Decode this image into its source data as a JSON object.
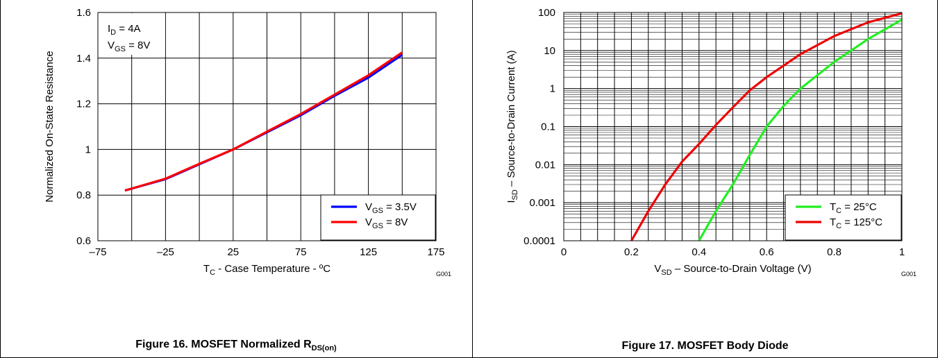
{
  "figures": {
    "left": {
      "caption_main": "Figure 16. MOSFET Normalized R",
      "caption_sub": "DS(on)",
      "code": "G001"
    },
    "right": {
      "caption_main": "Figure 17. MOSFET Body Diode",
      "code": "G001"
    }
  },
  "chart_data": [
    {
      "type": "line",
      "xlabel": "T - Case Temperature - ºC",
      "xlabel_parts": [
        "T",
        "C",
        " - Case Temperature - ºC"
      ],
      "ylabel": "Normalized On-State Resistance",
      "xlim": [
        -75,
        175
      ],
      "ylim": [
        0.6,
        1.6
      ],
      "xticks": [
        "–75",
        "–25",
        "25",
        "75",
        "125",
        "175"
      ],
      "xtick_values": [
        -75,
        -25,
        25,
        75,
        125,
        175
      ],
      "yticks": [
        "0.6",
        "0.8",
        "1",
        "1.2",
        "1.4",
        "1.6"
      ],
      "ytick_values": [
        0.6,
        0.8,
        1.0,
        1.2,
        1.4,
        1.6
      ],
      "grid": true,
      "annotations": [
        {
          "main": "I",
          "sub": "D",
          "rest": " = 4A"
        },
        {
          "main": "V",
          "sub": "GS",
          "rest": " = 8V"
        }
      ],
      "legend_position": "bottom-right",
      "series": [
        {
          "name": "V = 3.5V",
          "label_main": "V",
          "label_sub": "GS",
          "label_rest": " = 3.5V",
          "color": "#0000ff",
          "x": [
            -55,
            -25,
            0,
            25,
            50,
            75,
            100,
            125,
            150
          ],
          "y": [
            0.82,
            0.87,
            0.935,
            1.0,
            1.075,
            1.15,
            1.235,
            1.315,
            1.415
          ]
        },
        {
          "name": "V = 8V",
          "label_main": "V",
          "label_sub": "GS",
          "label_rest": " = 8V",
          "color": "#ff0000",
          "x": [
            -55,
            -25,
            0,
            25,
            50,
            75,
            100,
            125,
            150
          ],
          "y": [
            0.82,
            0.872,
            0.937,
            1.0,
            1.078,
            1.155,
            1.24,
            1.325,
            1.425
          ]
        }
      ]
    },
    {
      "type": "line",
      "xlabel": "V – Source-to-Drain Voltage (V)",
      "xlabel_parts": [
        "V",
        "SD",
        " – Source-to-Drain Voltage (V)"
      ],
      "ylabel": "I – Source-to-Drain Current (A)",
      "ylabel_parts": [
        "I",
        "SD",
        " – Source-to-Drain Current (A)"
      ],
      "xlim": [
        0,
        1
      ],
      "ylim": [
        0.0001,
        100
      ],
      "yscale": "log",
      "xticks": [
        "0",
        "0.2",
        "0.4",
        "0.6",
        "0.8",
        "1"
      ],
      "xtick_values": [
        0,
        0.2,
        0.4,
        0.6,
        0.8,
        1.0
      ],
      "yticks": [
        "0.0001",
        "0.001",
        "0.01",
        "0.1",
        "1",
        "10",
        "100"
      ],
      "ytick_values": [
        0.0001,
        0.001,
        0.01,
        0.1,
        1,
        10,
        100
      ],
      "grid": true,
      "legend_position": "bottom-right",
      "series": [
        {
          "name": "T = 25°C",
          "label_main": "T",
          "label_sub": "C",
          "label_rest": " = 25°C",
          "color": "#22ee22",
          "x": [
            0.4,
            0.45,
            0.5,
            0.55,
            0.6,
            0.65,
            0.7,
            0.8,
            0.9,
            1.0
          ],
          "y": [
            0.0001,
            0.0006,
            0.003,
            0.018,
            0.1,
            0.35,
            1.0,
            5.0,
            20,
            65
          ]
        },
        {
          "name": "T = 125°C",
          "label_main": "T",
          "label_sub": "C",
          "label_rest": " = 125°C",
          "color": "#ee0000",
          "x": [
            0.2,
            0.25,
            0.3,
            0.35,
            0.4,
            0.45,
            0.5,
            0.55,
            0.6,
            0.7,
            0.8,
            0.9,
            1.0
          ],
          "y": [
            0.0001,
            0.0006,
            0.003,
            0.012,
            0.035,
            0.11,
            0.32,
            0.9,
            2.0,
            8.0,
            24,
            55,
            95
          ]
        }
      ]
    }
  ]
}
